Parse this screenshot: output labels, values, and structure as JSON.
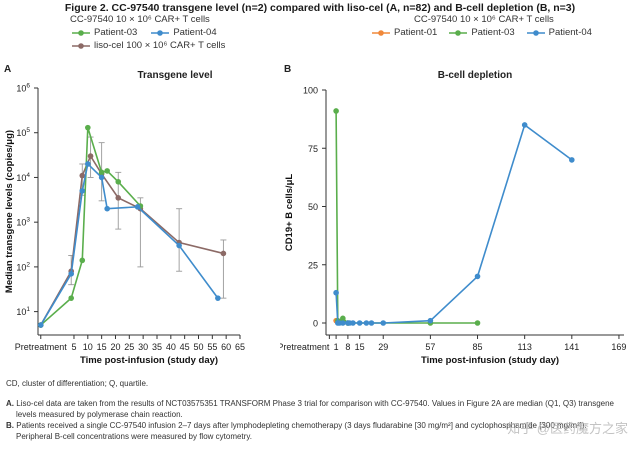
{
  "figure_title": "Figure 2. CC-97540 transgene level (n=2) compared with liso-cel (A, n=82) and B-cell depletion (B, n=3)",
  "colors": {
    "patient01": "#f0883a",
    "patient03": "#5aae4c",
    "patient04": "#3f8ccc",
    "lisocel": "#8c6a66",
    "errorbar": "#999999",
    "axis": "#333333"
  },
  "legend_a": {
    "header": "CC-97540 10 × 10⁶ CAR+ T cells",
    "items": [
      {
        "label": "Patient-03",
        "color_key": "patient03"
      },
      {
        "label": "Patient-04",
        "color_key": "patient04"
      },
      {
        "label": "liso-cel 100 × 10⁶ CAR+ T cells",
        "color_key": "lisocel"
      }
    ]
  },
  "legend_b": {
    "header": "CC-97540 10 × 10⁶ CAR+ T cells",
    "items": [
      {
        "label": "Patient-01",
        "color_key": "patient01"
      },
      {
        "label": "Patient-03",
        "color_key": "patient03"
      },
      {
        "label": "Patient-04",
        "color_key": "patient04"
      }
    ]
  },
  "panel_a": {
    "letter": "A",
    "title": "Transgene level"
  },
  "panel_b": {
    "letter": "B",
    "title": "B-cell depletion"
  },
  "chart_data": [
    {
      "type": "line",
      "title": "Transgene level",
      "xlabel": "Time post-infusion (study day)",
      "ylabel": "Median transgene levels (copies/μg)",
      "yscale": "log",
      "ylim": [
        3,
        1000000
      ],
      "xlim": [
        -8,
        65
      ],
      "xticks": [
        {
          "value": -7,
          "label": "Pretreatment"
        },
        {
          "value": 5,
          "label": "5"
        },
        {
          "value": 10,
          "label": "10"
        },
        {
          "value": 15,
          "label": "15"
        },
        {
          "value": 20,
          "label": "20"
        },
        {
          "value": 25,
          "label": "25"
        },
        {
          "value": 30,
          "label": "30"
        },
        {
          "value": 35,
          "label": "35"
        },
        {
          "value": 40,
          "label": "40"
        },
        {
          "value": 45,
          "label": "45"
        },
        {
          "value": 50,
          "label": "50"
        },
        {
          "value": 55,
          "label": "55"
        },
        {
          "value": 60,
          "label": "60"
        },
        {
          "value": 65,
          "label": "65"
        }
      ],
      "yticks": [
        {
          "value": 10,
          "base": "10",
          "exp": "1"
        },
        {
          "value": 100,
          "base": "10",
          "exp": "2"
        },
        {
          "value": 1000,
          "base": "10",
          "exp": "3"
        },
        {
          "value": 10000,
          "base": "10",
          "exp": "4"
        },
        {
          "value": 100000,
          "base": "10",
          "exp": "5"
        },
        {
          "value": 1000000,
          "base": "10",
          "exp": "6"
        }
      ],
      "series": [
        {
          "name": "liso-cel 100 × 10⁶ CAR+ T cells",
          "color_key": "lisocel",
          "x": [
            -7,
            4,
            8,
            11,
            15,
            21,
            29,
            43,
            59
          ],
          "y": [
            5,
            80,
            11000,
            30000,
            12000,
            3500,
            2000,
            350,
            200
          ],
          "err_low": [
            5,
            40,
            4000,
            10000,
            3000,
            700,
            100,
            80,
            20
          ],
          "err_high": [
            5,
            180,
            20000,
            80000,
            60000,
            13000,
            3500,
            2000,
            400
          ]
        },
        {
          "name": "Patient-03",
          "color_key": "patient03",
          "x": [
            -7,
            4,
            8,
            10,
            15,
            17,
            21,
            29
          ],
          "y": [
            5,
            20,
            140,
            130000,
            13000,
            14000,
            8000,
            2300
          ]
        },
        {
          "name": "Patient-04",
          "color_key": "patient04",
          "x": [
            -7,
            4,
            8,
            10,
            15,
            17,
            28,
            43,
            57
          ],
          "y": [
            5,
            70,
            5000,
            20000,
            10000,
            2000,
            2200,
            300,
            20
          ]
        }
      ]
    },
    {
      "type": "line",
      "title": "B-cell depletion",
      "xlabel": "Time post-infusion (study day)",
      "ylabel": "CD19+ B cells/μL",
      "ylim": [
        0,
        100
      ],
      "xlim": [
        -5,
        172
      ],
      "xticks": [
        {
          "value": -3,
          "label": "Pretreatment"
        },
        {
          "value": 1,
          "label": "1"
        },
        {
          "value": 8,
          "label": "8"
        },
        {
          "value": 15,
          "label": "15"
        },
        {
          "value": 29,
          "label": "29"
        },
        {
          "value": 57,
          "label": "57"
        },
        {
          "value": 85,
          "label": "85"
        },
        {
          "value": 113,
          "label": "113"
        },
        {
          "value": 141,
          "label": "141"
        },
        {
          "value": 169,
          "label": "169"
        }
      ],
      "yticks": [
        0,
        25,
        50,
        75,
        100
      ],
      "series": [
        {
          "name": "Patient-01",
          "color_key": "patient01",
          "x": [
            1,
            3,
            5,
            8
          ],
          "y": [
            1,
            0.5,
            0.3,
            0
          ]
        },
        {
          "name": "Patient-03",
          "color_key": "patient03",
          "x": [
            1,
            2,
            3,
            5,
            8,
            57,
            85
          ],
          "y": [
            91,
            1,
            0.5,
            2,
            0,
            0,
            0
          ]
        },
        {
          "name": "Patient-04",
          "color_key": "patient04",
          "x": [
            1,
            2,
            3,
            5,
            8,
            9,
            11,
            15,
            19,
            22,
            29,
            57,
            85,
            113,
            141
          ],
          "y": [
            13,
            0,
            0,
            0,
            0,
            0,
            0,
            0,
            0,
            0,
            0,
            1,
            20,
            85,
            70
          ]
        }
      ]
    }
  ],
  "footnotes": {
    "abbrev": "CD, cluster of differentiation; Q, quartile.",
    "a_letter": "A.",
    "a_line1": "Liso-cel data are taken from the results of NCT03575351 TRANSFORM Phase 3 trial for comparison with CC-97540. Values in Figure 2A are median (Q1, Q3) transgene",
    "a_line2": "levels measured by polymerase chain reaction.",
    "b_letter": "B.",
    "b_line1": "Patients received a single CC-97540 infusion 2–7 days after lymphodepleting chemotherapy (3 days fludarabine [30 mg/m²] and cyclophosphamide [300 mg/m²]).",
    "b_line2": "Peripheral B-cell concentrations were measured by flow cytometry."
  },
  "watermark": "知乎 @医药魔方之家"
}
